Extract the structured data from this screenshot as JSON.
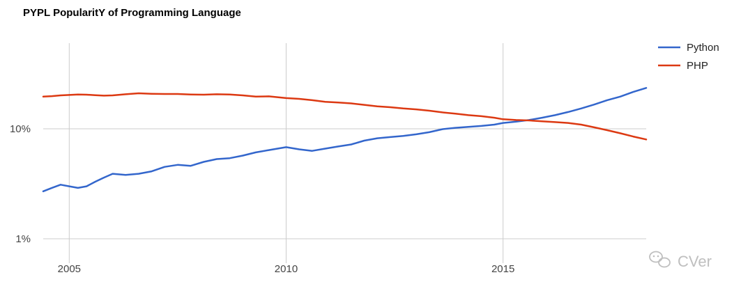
{
  "chart_data": {
    "type": "line",
    "title": "PYPL PopularitY of Programming Language",
    "xlabel": "",
    "ylabel": "",
    "y_scale": "log",
    "xlim": [
      2004.4,
      2018.3
    ],
    "ylim": [
      0.6,
      60
    ],
    "grid": true,
    "legend_position": "right",
    "x_ticks": [
      {
        "value": 2005,
        "label": "2005"
      },
      {
        "value": 2010,
        "label": "2010"
      },
      {
        "value": 2015,
        "label": "2015"
      }
    ],
    "y_ticks": [
      {
        "value": 1,
        "label": "1%"
      },
      {
        "value": 10,
        "label": "10%"
      }
    ],
    "x": [
      2004.4,
      2004.6,
      2004.8,
      2005.0,
      2005.2,
      2005.4,
      2005.6,
      2005.8,
      2006.0,
      2006.3,
      2006.6,
      2006.9,
      2007.2,
      2007.5,
      2007.8,
      2008.1,
      2008.4,
      2008.7,
      2009.0,
      2009.3,
      2009.6,
      2010.0,
      2010.3,
      2010.6,
      2010.9,
      2011.2,
      2011.5,
      2011.8,
      2012.1,
      2012.4,
      2012.7,
      2013.0,
      2013.3,
      2013.6,
      2013.9,
      2014.2,
      2014.5,
      2014.8,
      2015.0,
      2015.3,
      2015.6,
      2015.9,
      2016.2,
      2016.5,
      2016.8,
      2017.1,
      2017.4,
      2017.7,
      2018.0,
      2018.3
    ],
    "series": [
      {
        "name": "Python",
        "color": "#3366cc",
        "values": [
          2.7,
          2.9,
          3.1,
          3.0,
          2.9,
          3.0,
          3.3,
          3.6,
          3.9,
          3.8,
          3.9,
          4.1,
          4.5,
          4.7,
          4.6,
          5.0,
          5.3,
          5.4,
          5.7,
          6.1,
          6.4,
          6.8,
          6.5,
          6.3,
          6.6,
          6.9,
          7.2,
          7.8,
          8.2,
          8.4,
          8.6,
          8.9,
          9.3,
          9.9,
          10.2,
          10.4,
          10.6,
          10.9,
          11.3,
          11.6,
          12.0,
          12.6,
          13.3,
          14.2,
          15.3,
          16.6,
          18.2,
          19.6,
          21.6,
          23.5
        ]
      },
      {
        "name": "PHP",
        "color": "#dc3912",
        "values": [
          19.6,
          19.8,
          20.1,
          20.3,
          20.5,
          20.4,
          20.2,
          20.0,
          20.1,
          20.6,
          21.0,
          20.8,
          20.7,
          20.7,
          20.5,
          20.4,
          20.6,
          20.5,
          20.1,
          19.6,
          19.7,
          19.0,
          18.7,
          18.2,
          17.6,
          17.3,
          17.0,
          16.5,
          16.0,
          15.7,
          15.3,
          15.0,
          14.6,
          14.1,
          13.7,
          13.3,
          13.0,
          12.6,
          12.2,
          12.0,
          11.9,
          11.7,
          11.5,
          11.3,
          10.9,
          10.3,
          9.7,
          9.1,
          8.5,
          8.0
        ]
      }
    ]
  },
  "watermark": {
    "text": "CVer",
    "icon": "wechat-icon"
  }
}
